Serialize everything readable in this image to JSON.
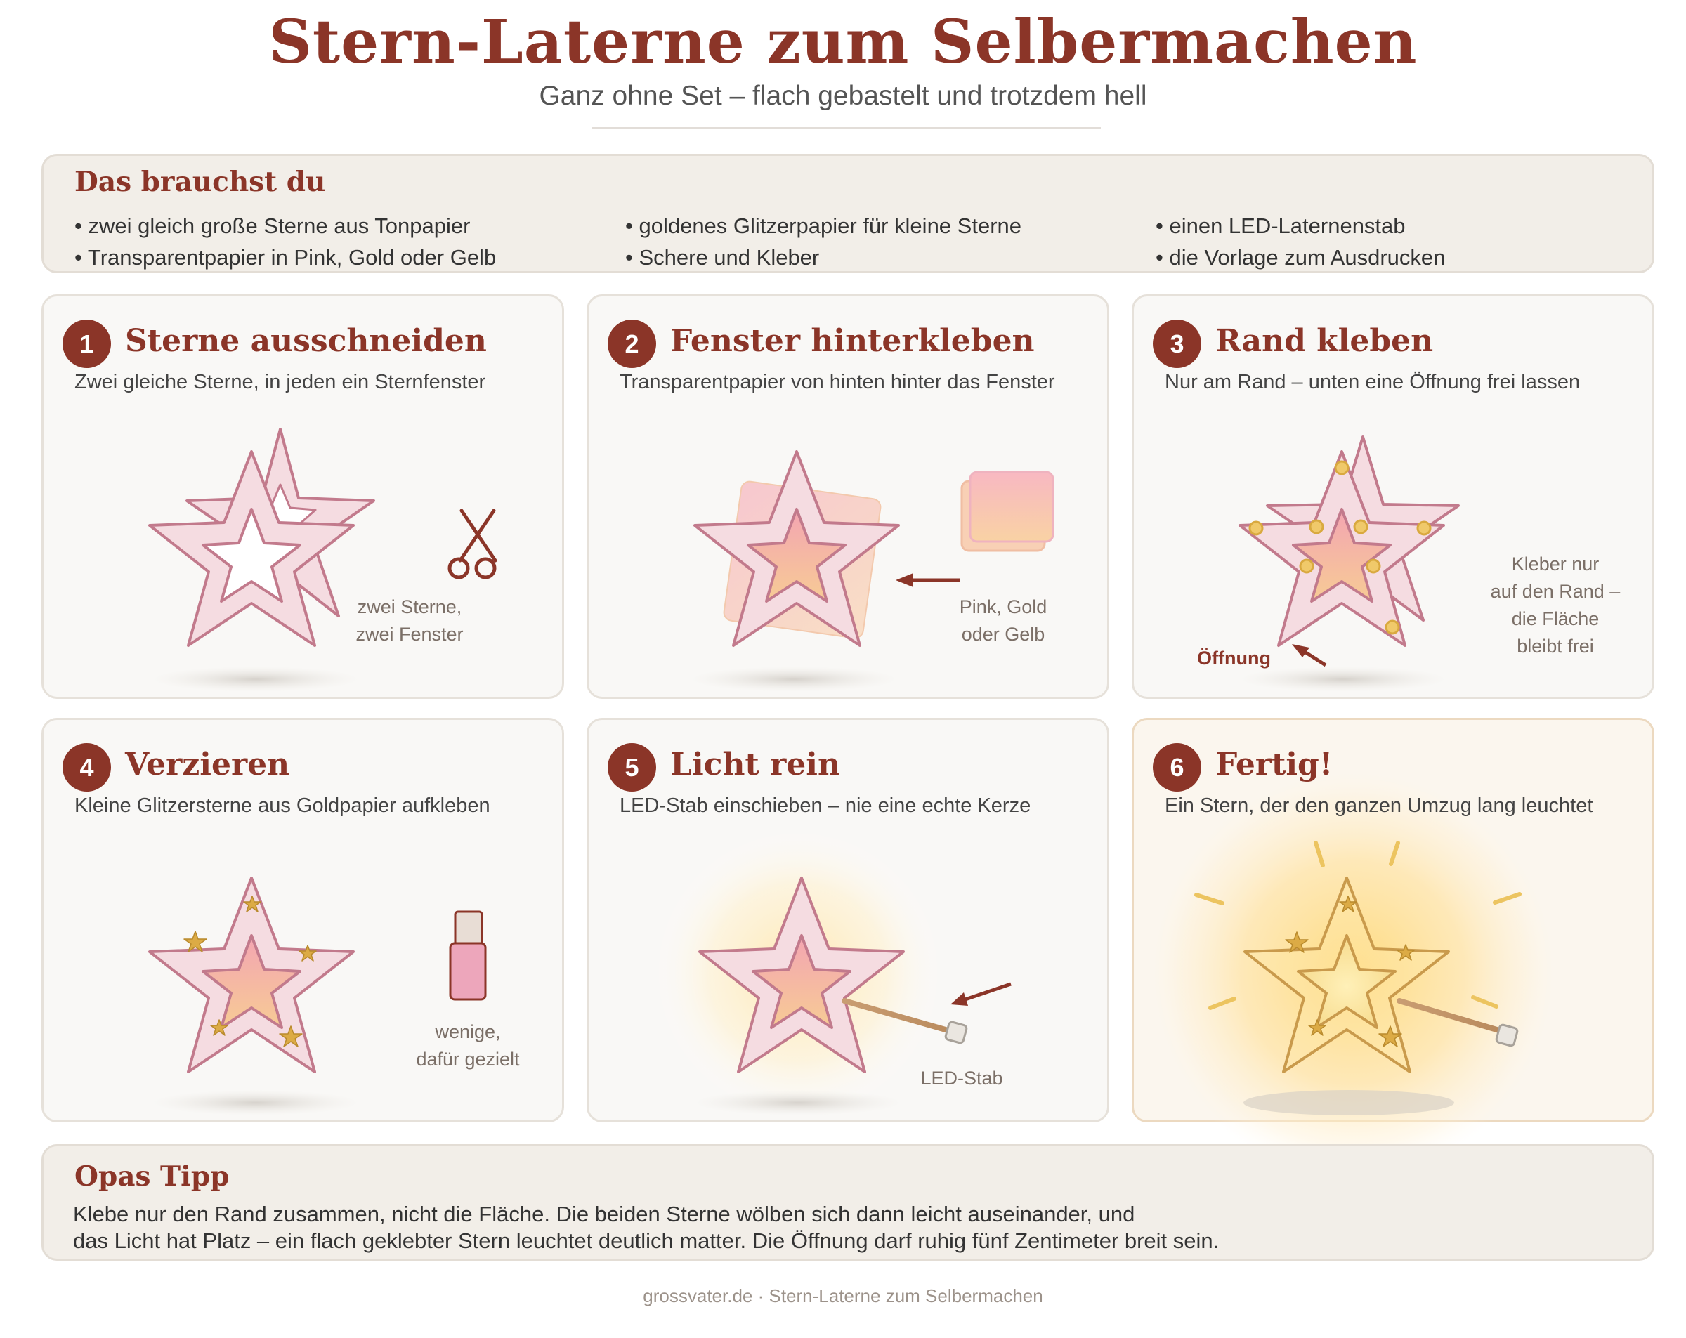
{
  "header": {
    "title": "Stern-Laterne zum Selbermachen",
    "subtitle": "Ganz ohne Set – flach gebastelt und trotzdem hell"
  },
  "materials": {
    "title": "Das brauchst du",
    "items": [
      "• zwei gleich große Sterne aus Tonpapier",
      "• Transparentpapier in Pink, Gold oder Gelb",
      "• goldenes Glitzerpapier für kleine Sterne",
      "• Schere und Kleber",
      "• einen LED-Laternenstab",
      "• die Vorlage zum Ausdrucken"
    ]
  },
  "steps": [
    {
      "number": "1",
      "title": "Sterne ausschneiden",
      "description": "Zwei gleiche Sterne, in jeden ein Sternfenster",
      "note_lines": [
        "zwei Sterne,",
        "zwei Fenster"
      ],
      "icon": "scissors-icon"
    },
    {
      "number": "2",
      "title": "Fenster hinterkleben",
      "description": "Transparentpapier von hinten hinter das Fenster",
      "note_lines": [
        "Pink, Gold",
        "oder Gelb"
      ],
      "icon": "paper-sheets-icon"
    },
    {
      "number": "3",
      "title": "Rand kleben",
      "description": "Nur am Rand – unten eine Öffnung frei lassen",
      "note_lines": [
        "Kleber nur",
        "auf den Rand –",
        "die Fläche",
        "bleibt frei"
      ],
      "label": "Öffnung",
      "icon": "glue-dots-icon"
    },
    {
      "number": "4",
      "title": "Verzieren",
      "description": "Kleine Glitzersterne aus Goldpapier aufkleben",
      "note_lines": [
        "wenige,",
        "dafür gezielt"
      ],
      "icon": "glue-bottle-icon"
    },
    {
      "number": "5",
      "title": "Licht rein",
      "description": "LED-Stab einschieben – nie eine echte Kerze",
      "note_lines": [
        "LED-Stab"
      ],
      "icon": "led-stick-icon"
    },
    {
      "number": "6",
      "title": "Fertig!",
      "description": "Ein Stern, der den ganzen Umzug lang leuchtet",
      "icon": "glowing-star-icon"
    }
  ],
  "tip": {
    "title": "Opas Tipp",
    "lines": [
      "Klebe nur den Rand zusammen, nicht die Fläche. Die beiden Sterne wölben sich dann leicht auseinander, und",
      "das Licht hat Platz – ein flach geklebter Stern leuchtet deutlich matter. Die Öffnung darf ruhig fünf Zentimeter breit sein."
    ]
  },
  "footer": "grossvater.de · Stern-Laterne zum Selbermachen",
  "colors": {
    "accent": "#8b3528",
    "star_fill": "#f5dce1",
    "star_stroke": "#c27a8c",
    "gold": "#d9a93f",
    "glow": "#ffe6a8"
  }
}
